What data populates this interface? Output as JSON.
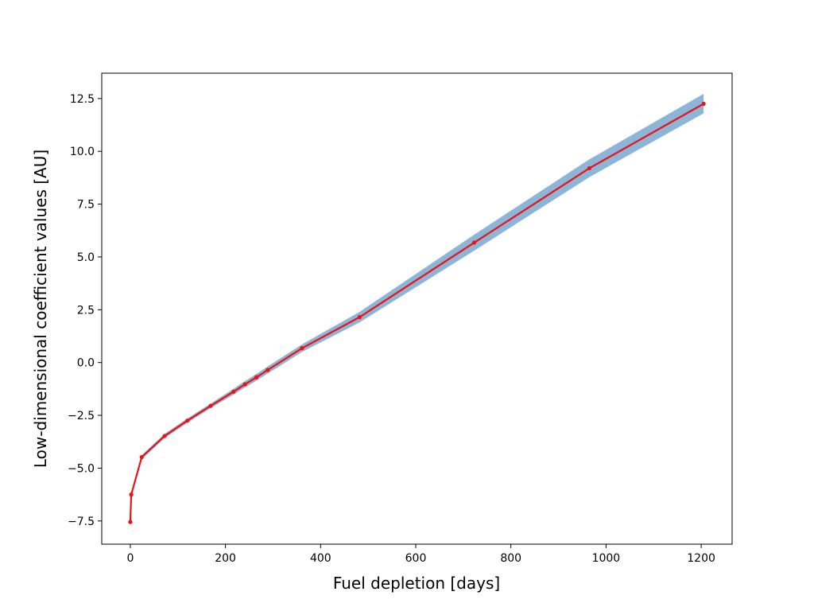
{
  "chart_data": {
    "type": "line",
    "title": "",
    "xlabel": "Fuel depletion [days]",
    "ylabel": "Low-dimensional coefficient values [AU]",
    "xlim": [
      -60,
      1265
    ],
    "ylim": [
      -8.6,
      13.7
    ],
    "x_ticks": [
      0,
      200,
      400,
      600,
      800,
      1000,
      1200
    ],
    "y_ticks": [
      -7.5,
      -5.0,
      -2.5,
      0.0,
      2.5,
      5.0,
      7.5,
      10.0,
      12.5
    ],
    "x_tick_labels": [
      "0",
      "200",
      "400",
      "600",
      "800",
      "1000",
      "1200"
    ],
    "y_tick_labels": [
      "−7.5",
      "−5.0",
      "−2.5",
      "0.0",
      "2.5",
      "5.0",
      "7.5",
      "10.0",
      "12.5"
    ],
    "grid": false,
    "series": [
      {
        "color": "#ee1111",
        "marker": "dot",
        "x": [
          0,
          2,
          24,
          72,
          120,
          169,
          217,
          241,
          265,
          289,
          361,
          482,
          723,
          965,
          1205
        ],
        "y": [
          -7.55,
          -6.25,
          -4.48,
          -3.48,
          -2.75,
          -2.05,
          -1.38,
          -1.03,
          -0.7,
          -0.35,
          0.68,
          2.15,
          5.68,
          9.2,
          12.25
        ]
      }
    ],
    "band": {
      "color": "#8db5d8",
      "x": [
        0,
        2,
        24,
        72,
        120,
        169,
        217,
        241,
        265,
        289,
        361,
        482,
        723,
        965,
        1205
      ],
      "lower": [
        -7.65,
        -6.35,
        -4.58,
        -3.58,
        -2.85,
        -2.16,
        -1.52,
        -1.18,
        -0.86,
        -0.52,
        0.5,
        1.9,
        5.3,
        8.78,
        11.8
      ],
      "upper": [
        -7.45,
        -6.15,
        -4.38,
        -3.38,
        -2.65,
        -1.94,
        -1.24,
        -0.88,
        -0.54,
        -0.18,
        0.86,
        2.4,
        6.06,
        9.62,
        12.72
      ]
    }
  }
}
